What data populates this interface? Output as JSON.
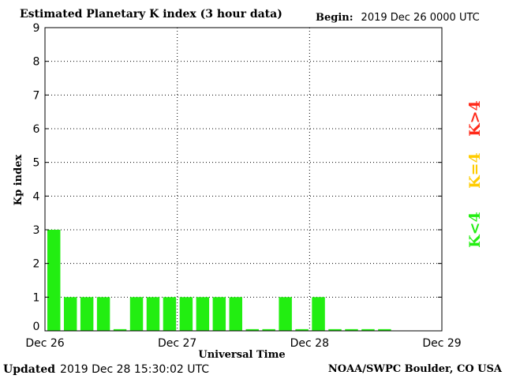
{
  "header": {
    "title": "Estimated Planetary K index (3 hour data)",
    "begin_label": "Begin:",
    "begin_value": "2019 Dec 26 0000 UTC"
  },
  "footer": {
    "updated_label": "Updated",
    "updated_value": "2019 Dec 28 15:30:02 UTC",
    "credit": "NOAA/SWPC Boulder, CO USA"
  },
  "key": {
    "high": {
      "label": "K>4",
      "color": "#ff2a1a"
    },
    "mid": {
      "label": "K=4",
      "color": "#ffcc00"
    },
    "low": {
      "label": "K<4",
      "color": "#22ee11"
    }
  },
  "chart_data": {
    "type": "bar",
    "title": "Estimated Planetary K index (3 hour data)",
    "xlabel": "Universal Time",
    "ylabel": "Kp index",
    "ylim": [
      0,
      9
    ],
    "yticks": [
      "0",
      "1",
      "2",
      "3",
      "4",
      "5",
      "6",
      "7",
      "8",
      "9"
    ],
    "xticks": [
      "Dec 26",
      "Dec 27",
      "Dec 28",
      "Dec 29"
    ],
    "interval_hours": 3,
    "values": [
      3,
      1,
      1,
      1,
      0.05,
      1,
      1,
      1,
      1,
      1,
      1,
      1,
      0.05,
      0.05,
      1,
      0.05,
      1,
      0.05,
      0.05,
      0.05,
      0.05
    ],
    "bar_color": "#22ee11",
    "grid": true
  }
}
